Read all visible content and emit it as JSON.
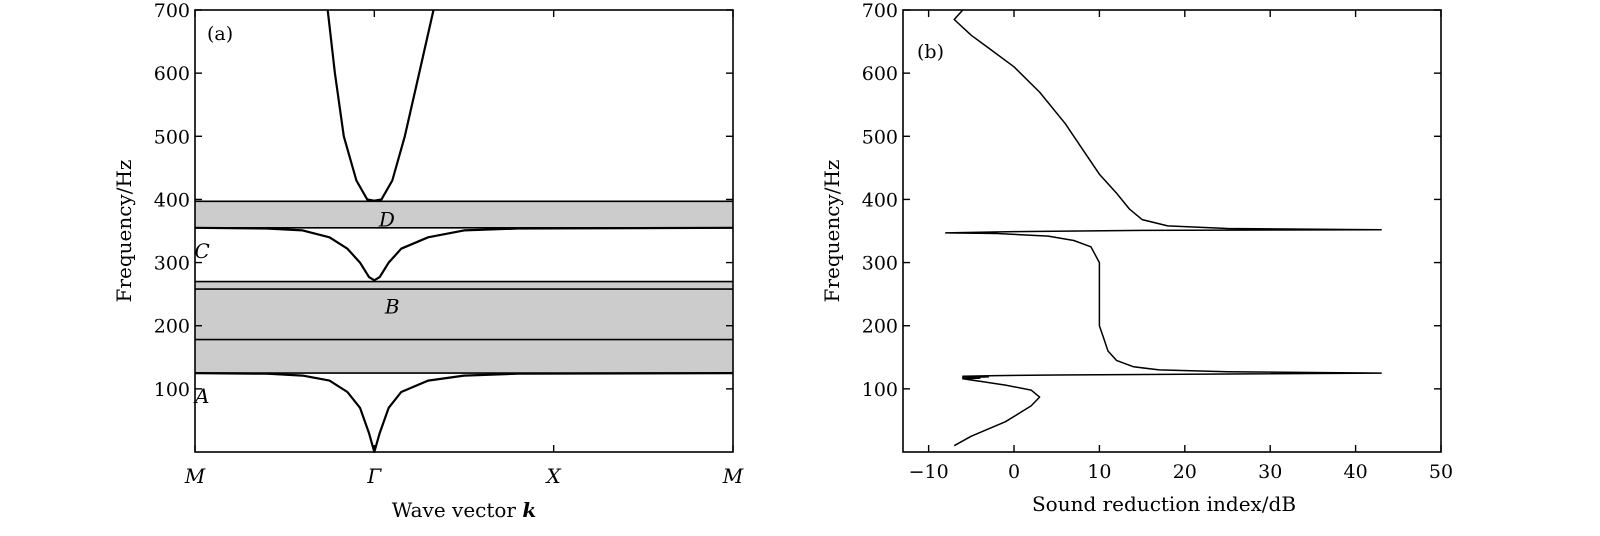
{
  "chart_data": [
    {
      "panel_label": "(a)",
      "type": "line",
      "xlabel_text": "Wave vector",
      "xlabel_symbol": "k",
      "ylabel": "Frequency/Hz",
      "ylim": [
        0,
        700
      ],
      "yticks": [
        100,
        200,
        300,
        400,
        500,
        600,
        700
      ],
      "xticks": [
        {
          "label": "M",
          "pos": 0
        },
        {
          "label": "Γ",
          "pos": 1
        },
        {
          "label": "X",
          "pos": 2
        },
        {
          "label": "M",
          "pos": 3
        }
      ],
      "xlim": [
        0,
        3
      ],
      "bands": [
        {
          "from": 125,
          "to": 270
        },
        {
          "from": 355,
          "to": 397
        }
      ],
      "hlines": [
        125,
        178,
        258,
        270,
        355,
        397
      ],
      "region_labels": [
        {
          "text": "A",
          "x": 0.04,
          "y": 90
        },
        {
          "text": "B",
          "x": 1.1,
          "y": 232
        },
        {
          "text": "C",
          "x": 0.04,
          "y": 320
        },
        {
          "text": "D",
          "x": 1.07,
          "y": 370
        }
      ],
      "series": [
        {
          "points": [
            [
              0,
              125
            ],
            [
              0.4,
              124
            ],
            [
              0.6,
              121
            ],
            [
              0.75,
              113
            ],
            [
              0.85,
              95
            ],
            [
              0.92,
              70
            ],
            [
              0.97,
              30
            ],
            [
              1.0,
              0
            ],
            [
              1.03,
              30
            ],
            [
              1.08,
              70
            ],
            [
              1.15,
              95
            ],
            [
              1.3,
              113
            ],
            [
              1.5,
              121
            ],
            [
              1.8,
              124
            ],
            [
              3,
              125
            ]
          ]
        },
        {
          "points": [
            [
              0,
              355
            ],
            [
              0.4,
              354
            ],
            [
              0.6,
              351
            ],
            [
              0.75,
              340
            ],
            [
              0.85,
              322
            ],
            [
              0.92,
              300
            ],
            [
              0.97,
              277
            ],
            [
              1.0,
              272
            ],
            [
              1.03,
              277
            ],
            [
              1.08,
              300
            ],
            [
              1.15,
              322
            ],
            [
              1.3,
              340
            ],
            [
              1.5,
              351
            ],
            [
              1.8,
              354
            ],
            [
              3,
              355
            ]
          ]
        },
        {
          "points": [
            [
              0.74,
              700
            ],
            [
              0.78,
              600
            ],
            [
              0.83,
              500
            ],
            [
              0.9,
              430
            ],
            [
              0.96,
              400
            ],
            [
              1.0,
              398
            ],
            [
              1.04,
              400
            ],
            [
              1.1,
              430
            ],
            [
              1.17,
              500
            ],
            [
              1.25,
              600
            ],
            [
              1.33,
              700
            ]
          ]
        }
      ]
    },
    {
      "panel_label": "(b)",
      "type": "line",
      "xlabel": "Sound reduction index/dB",
      "ylabel": "Frequency/Hz",
      "xlim": [
        -13,
        50
      ],
      "ylim": [
        0,
        700
      ],
      "xticks": [
        -10,
        0,
        10,
        20,
        30,
        40,
        50
      ],
      "yticks": [
        100,
        200,
        300,
        400,
        500,
        600,
        700
      ],
      "series": [
        {
          "points": [
            [
              -7,
              10
            ],
            [
              -5,
              25
            ],
            [
              -1,
              48
            ],
            [
              2,
              73
            ],
            [
              3,
              87
            ],
            [
              2,
              98
            ],
            [
              -1,
              106
            ],
            [
              -4,
              112
            ],
            [
              -6,
              116
            ],
            [
              -4,
              117
            ],
            [
              -6,
              118
            ],
            [
              -3,
              119
            ],
            [
              -6,
              120
            ],
            [
              -2,
              121
            ],
            [
              5,
              122
            ],
            [
              20,
              123
            ],
            [
              43,
              125
            ],
            [
              25,
              127
            ],
            [
              17,
              130
            ],
            [
              14,
              135
            ],
            [
              12,
              145
            ],
            [
              11,
              160
            ],
            [
              10.5,
              180
            ],
            [
              10,
              200
            ],
            [
              10,
              250
            ],
            [
              10,
              300
            ],
            [
              9,
              325
            ],
            [
              7,
              335
            ],
            [
              4,
              342
            ],
            [
              -2,
              346
            ],
            [
              -8,
              347
            ],
            [
              0,
              349
            ],
            [
              15,
              351
            ],
            [
              43,
              352
            ],
            [
              25,
              354
            ],
            [
              18,
              358
            ],
            [
              15,
              368
            ],
            [
              13.5,
              385
            ],
            [
              12,
              410
            ],
            [
              10,
              440
            ],
            [
              8,
              480
            ],
            [
              6,
              520
            ],
            [
              3,
              570
            ],
            [
              0,
              610
            ],
            [
              -3,
              640
            ],
            [
              -5,
              660
            ],
            [
              -7,
              685
            ],
            [
              -6,
              700
            ]
          ]
        }
      ]
    }
  ]
}
